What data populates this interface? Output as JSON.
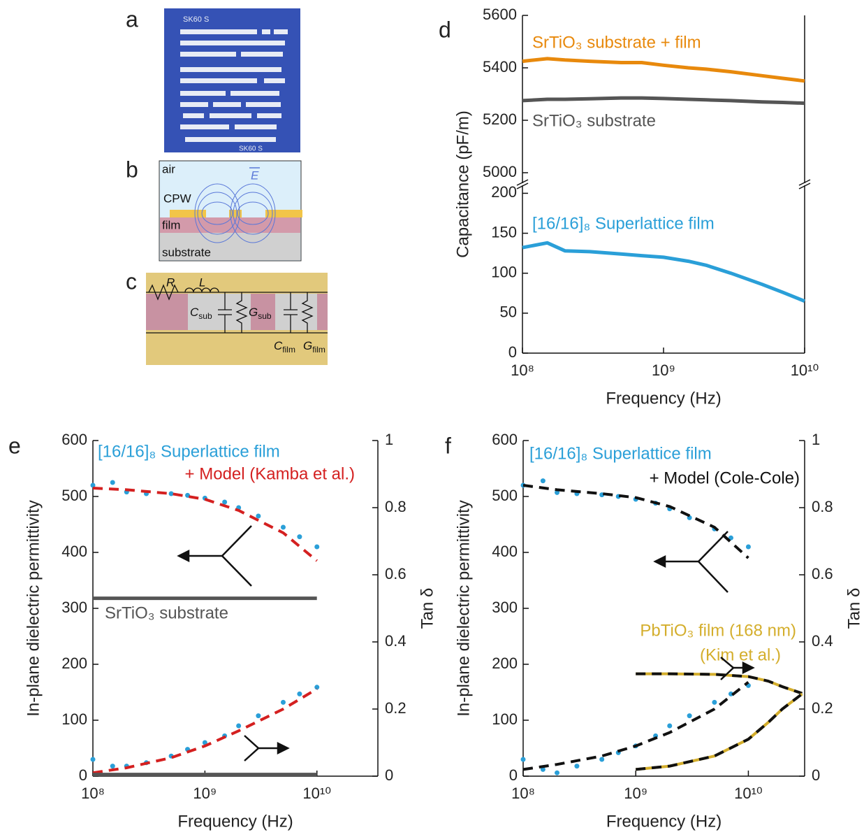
{
  "panels": {
    "a": {
      "letter": "a",
      "texts": [
        "SK60 S",
        "SK60 S"
      ]
    },
    "b": {
      "letter": "b",
      "labels": [
        "air",
        "CPW",
        "film",
        "substrate",
        "E"
      ]
    },
    "c": {
      "letter": "c",
      "labels": [
        "R",
        "L"
      ],
      "subscripted": [
        {
          "main": "C",
          "sub": "sub"
        },
        {
          "main": "G",
          "sub": "sub"
        },
        {
          "main": "C",
          "sub": "film"
        },
        {
          "main": "G",
          "sub": "film"
        }
      ]
    }
  },
  "chart_data": [
    {
      "type": "line",
      "panel": "d",
      "xlabel": "Frequency (Hz)",
      "ylabel": "Capacitance (pF/m)",
      "xscale": "log",
      "xlim": [
        100000000,
        10000000000
      ],
      "xticks": [
        {
          "value": 100000000,
          "label": "10⁸"
        },
        {
          "value": 1000000000,
          "label": "10⁹"
        },
        {
          "value": 10000000000,
          "label": "10¹⁰"
        }
      ],
      "ylim": [
        0,
        210
      ],
      "yticks": [
        0,
        50,
        100,
        150,
        200
      ],
      "ylim_upper": [
        4960,
        5600
      ],
      "yticks_upper": [
        5000,
        5200,
        5400,
        5600
      ],
      "axis_break": true,
      "series": [
        {
          "name": "SrTiO₃ substrate + film",
          "color": "#e8890c",
          "style": "line",
          "axis": "upper",
          "x": [
            100000000,
            150000000,
            200000000,
            300000000,
            500000000,
            700000000,
            1000000000,
            1500000000,
            2000000000,
            3000000000,
            5000000000,
            7000000000,
            10000000000
          ],
          "values": [
            5425,
            5435,
            5430,
            5425,
            5420,
            5420,
            5410,
            5400,
            5395,
            5385,
            5370,
            5360,
            5350
          ]
        },
        {
          "name": "SrTiO₃ substrate",
          "color": "#555555",
          "style": "line",
          "axis": "upper",
          "x": [
            100000000,
            150000000,
            200000000,
            300000000,
            500000000,
            700000000,
            1000000000,
            1500000000,
            2000000000,
            3000000000,
            5000000000,
            7000000000,
            10000000000
          ],
          "values": [
            5275,
            5280,
            5280,
            5282,
            5285,
            5285,
            5283,
            5280,
            5278,
            5275,
            5270,
            5268,
            5265
          ]
        },
        {
          "name": "[16/16]₈ Superlattice film",
          "color": "#2a9fd8",
          "style": "line",
          "axis": "y",
          "x": [
            100000000,
            150000000,
            200000000,
            300000000,
            500000000,
            700000000,
            1000000000,
            1500000000,
            2000000000,
            3000000000,
            5000000000,
            7000000000,
            10000000000
          ],
          "values": [
            132,
            138,
            128,
            127,
            124,
            122,
            120,
            115,
            110,
            100,
            86,
            76,
            65
          ]
        }
      ]
    },
    {
      "type": "line",
      "panel": "e",
      "xlabel": "Frequency (Hz)",
      "ylabel": "In-plane dielectric permittivity",
      "y2label": "Tan δ",
      "xscale": "log",
      "xlim": [
        100000000,
        35000000000
      ],
      "xticks": [
        {
          "value": 100000000,
          "label": "10⁸"
        },
        {
          "value": 1000000000,
          "label": "10⁹"
        },
        {
          "value": 10000000000,
          "label": "10¹⁰"
        }
      ],
      "ylim": [
        0,
        600
      ],
      "yticks": [
        0,
        100,
        200,
        300,
        400,
        500,
        600
      ],
      "y2lim": [
        0,
        1
      ],
      "y2ticks": [
        0,
        0.2,
        0.4,
        0.6,
        0.8,
        1
      ],
      "series": [
        {
          "name": "[16/16]₈ Superlattice film",
          "color": "#2a9fd8",
          "style": "dots",
          "axis": "y",
          "x": [
            100000000,
            150000000,
            200000000,
            300000000,
            500000000,
            700000000,
            1000000000,
            1500000000,
            2000000000,
            3000000000,
            5000000000,
            7000000000,
            10000000000
          ],
          "values": [
            520,
            525,
            508,
            505,
            505,
            502,
            497,
            490,
            480,
            465,
            445,
            428,
            410
          ]
        },
        {
          "name": "+ Model (Kamba et al.)",
          "color": "#d42020",
          "style": "dashed",
          "axis": "y",
          "x": [
            100000000,
            200000000,
            500000000,
            1000000000,
            2000000000,
            5000000000,
            10000000000
          ],
          "values": [
            515,
            512,
            505,
            495,
            475,
            435,
            385
          ]
        },
        {
          "name": "SrTiO₃ substrate",
          "color": "#555555",
          "style": "line",
          "axis": "y",
          "x": [
            100000000,
            200000000,
            500000000,
            1000000000,
            2000000000,
            5000000000,
            10000000000
          ],
          "values": [
            318,
            318,
            318,
            318,
            318,
            318,
            318
          ]
        },
        {
          "color": "#2a9fd8",
          "style": "dots",
          "axis": "y2",
          "x": [
            100000000,
            150000000,
            200000000,
            300000000,
            500000000,
            700000000,
            1000000000,
            1500000000,
            2000000000,
            3000000000,
            5000000000,
            7000000000,
            10000000000
          ],
          "values": [
            0.05,
            0.03,
            0.03,
            0.04,
            0.06,
            0.08,
            0.1,
            0.12,
            0.15,
            0.18,
            0.22,
            0.245,
            0.265
          ]
        },
        {
          "color": "#d42020",
          "style": "dashed",
          "axis": "y2",
          "x": [
            100000000,
            200000000,
            500000000,
            1000000000,
            2000000000,
            5000000000,
            10000000000
          ],
          "values": [
            0.01,
            0.025,
            0.055,
            0.09,
            0.135,
            0.2,
            0.26
          ]
        },
        {
          "color": "#555555",
          "style": "line",
          "axis": "y2",
          "x": [
            100000000,
            200000000,
            500000000,
            1000000000,
            2000000000,
            5000000000,
            10000000000
          ],
          "values": [
            0.005,
            0.005,
            0.005,
            0.005,
            0.005,
            0.005,
            0.005
          ]
        }
      ]
    },
    {
      "type": "line",
      "panel": "f",
      "xlabel": "Frequency (Hz)",
      "ylabel": "In-plane dielectric permittivity",
      "y2label": "Tan δ",
      "xscale": "log",
      "xlim": [
        100000000,
        31600000000
      ],
      "xticks": [
        {
          "value": 100000000,
          "label": "10⁸"
        },
        {
          "value": 1000000000,
          "label": "10⁹"
        },
        {
          "value": 10000000000,
          "label": "10¹⁰"
        }
      ],
      "ylim": [
        0,
        600
      ],
      "yticks": [
        0,
        100,
        200,
        300,
        400,
        500,
        600
      ],
      "y2lim": [
        0,
        1
      ],
      "y2ticks": [
        0,
        0.2,
        0.4,
        0.6,
        0.8,
        1
      ],
      "annotations": [
        "(Kim et al.)"
      ],
      "series": [
        {
          "name": "[16/16]₈ Superlattice film",
          "color": "#2a9fd8",
          "style": "dots",
          "axis": "y",
          "x": [
            100000000,
            150000000,
            200000000,
            300000000,
            500000000,
            700000000,
            1000000000,
            1500000000,
            2000000000,
            3000000000,
            5000000000,
            7000000000,
            10000000000
          ],
          "values": [
            520,
            528,
            507,
            505,
            503,
            500,
            495,
            488,
            478,
            462,
            442,
            426,
            410
          ]
        },
        {
          "name": "+ Model (Cole-Cole)",
          "color": "#111111",
          "style": "dashed",
          "axis": "y",
          "x": [
            100000000,
            200000000,
            500000000,
            1000000000,
            2000000000,
            5000000000,
            10000000000
          ],
          "values": [
            520,
            512,
            505,
            498,
            482,
            445,
            390
          ]
        },
        {
          "color": "#2a9fd8",
          "style": "dots",
          "axis": "y2",
          "x": [
            100000000,
            150000000,
            200000000,
            300000000,
            500000000,
            700000000,
            1000000000,
            1500000000,
            2000000000,
            3000000000,
            5000000000,
            7000000000,
            10000000000
          ],
          "values": [
            0.05,
            0.02,
            0.01,
            0.03,
            0.05,
            0.07,
            0.09,
            0.12,
            0.15,
            0.18,
            0.22,
            0.245,
            0.27
          ]
        },
        {
          "color": "#111111",
          "style": "dashed",
          "axis": "y2",
          "x": [
            100000000,
            200000000,
            500000000,
            1000000000,
            2000000000,
            5000000000,
            10000000000
          ],
          "values": [
            0.02,
            0.035,
            0.06,
            0.09,
            0.13,
            0.2,
            0.28
          ]
        },
        {
          "name": "PbTiO₃ film (168 nm)",
          "color": "#d4ae2c",
          "dash_color": "#111111",
          "style": "dashed",
          "axis": "y",
          "x": [
            1000000000,
            2000000000,
            5000000000,
            10000000000,
            15000000000,
            20000000000,
            30000000000
          ],
          "values": [
            183,
            183,
            182,
            178,
            170,
            160,
            148
          ]
        },
        {
          "color": "#d4ae2c",
          "dash_color": "#111111",
          "style": "dashed",
          "axis": "y2",
          "x": [
            1000000000,
            2000000000,
            5000000000,
            10000000000,
            15000000000,
            20000000000,
            30000000000
          ],
          "values": [
            0.02,
            0.03,
            0.06,
            0.11,
            0.16,
            0.2,
            0.245
          ]
        }
      ]
    }
  ]
}
